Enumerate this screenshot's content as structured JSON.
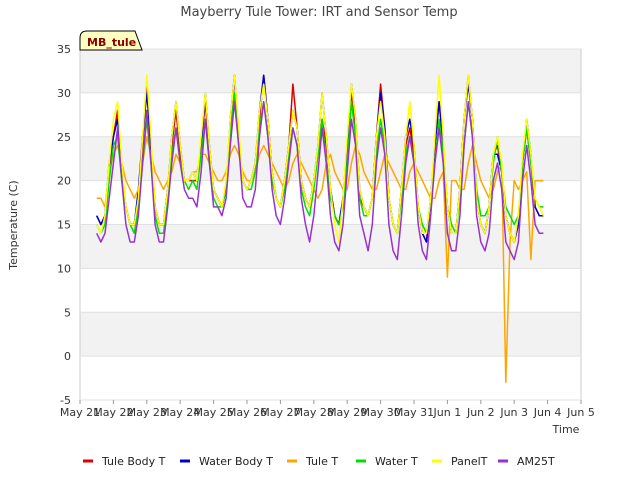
{
  "chart_data": {
    "type": "line",
    "title": "Mayberry Tule Tower: IRT and Sensor Temp",
    "xlabel": "Time",
    "ylabel": "Temperature (C)",
    "badge": "MB_tule",
    "xlim": [
      0,
      15
    ],
    "ylim": [
      -5,
      35
    ],
    "x_ticks": [
      0,
      1,
      2,
      3,
      4,
      5,
      6,
      7,
      8,
      9,
      10,
      11,
      12,
      13,
      14,
      15
    ],
    "x_tick_labels": [
      "May 21",
      "May 22",
      "May 23",
      "May 24",
      "May 25",
      "May 26",
      "May 27",
      "May 28",
      "May 29",
      "May 30",
      "May 31",
      "Jun 1",
      "Jun 2",
      "Jun 3",
      "Jun 4",
      "Jun 5"
    ],
    "y_ticks": [
      -5,
      0,
      5,
      10,
      15,
      20,
      25,
      30,
      35
    ],
    "grid": true,
    "legend_position": "bottom",
    "data_start": 0.5,
    "data_end": 14.3,
    "x_step_days": 0.125,
    "series": [
      {
        "name": "Tule Body T",
        "color": "#dd0000",
        "values": [
          16,
          15,
          16,
          21,
          25,
          28,
          21,
          17,
          15,
          15,
          18,
          24,
          31,
          24,
          17,
          15,
          15,
          19,
          24,
          28,
          23,
          20,
          20,
          20,
          20,
          24,
          29,
          23,
          19,
          18,
          17,
          19,
          26,
          32,
          25,
          20,
          19,
          20,
          22,
          27,
          32,
          27,
          21,
          18,
          17,
          20,
          24,
          31,
          26,
          20,
          18,
          17,
          20,
          23,
          27,
          24,
          19,
          16,
          15,
          18,
          24,
          30,
          26,
          18,
          17,
          16,
          18,
          25,
          31,
          26,
          18,
          15,
          14,
          19,
          24,
          26,
          23,
          17,
          14,
          13,
          18,
          24,
          29,
          24,
          17,
          14,
          14,
          19,
          27,
          32,
          27,
          18,
          15,
          14,
          17,
          23,
          24,
          21,
          16,
          14,
          13,
          15,
          22,
          26,
          22,
          17,
          16,
          16
        ]
      },
      {
        "name": "Water Body T",
        "color": "#0000cc",
        "values": [
          16,
          15,
          16,
          22,
          25,
          27,
          21,
          17,
          15,
          15,
          19,
          25,
          30,
          24,
          17,
          15,
          15,
          19,
          25,
          29,
          24,
          20,
          20,
          21,
          20,
          24,
          30,
          24,
          19,
          18,
          17,
          19,
          27,
          32,
          25,
          20,
          19,
          20,
          22,
          28,
          32,
          27,
          21,
          18,
          17,
          20,
          24,
          28,
          26,
          20,
          18,
          17,
          20,
          24,
          30,
          25,
          19,
          16,
          15,
          18,
          24,
          31,
          27,
          19,
          17,
          16,
          18,
          25,
          30,
          26,
          18,
          15,
          14,
          19,
          25,
          27,
          24,
          17,
          14,
          13,
          18,
          24,
          29,
          24,
          17,
          14,
          14,
          19,
          27,
          31,
          27,
          18,
          15,
          14,
          17,
          23,
          23,
          21,
          16,
          14,
          13,
          15,
          22,
          27,
          23,
          17,
          16,
          16
        ]
      },
      {
        "name": "Tule T",
        "color": "#ffa500",
        "values": [
          18,
          18,
          17,
          21,
          23,
          24,
          22,
          20,
          19,
          18,
          19,
          22,
          25,
          23,
          21,
          20,
          19,
          20,
          21,
          23,
          22,
          20,
          20,
          21,
          21,
          23,
          23,
          22,
          21,
          20,
          20,
          21,
          23,
          24,
          23,
          21,
          20,
          20,
          21,
          23,
          24,
          23,
          22,
          21,
          20,
          19,
          20,
          22,
          23,
          22,
          21,
          20,
          19,
          18,
          19,
          22,
          23,
          21,
          20,
          19,
          19,
          22,
          24,
          23,
          21,
          20,
          19,
          19,
          21,
          23,
          22,
          21,
          20,
          19,
          19,
          21,
          22,
          21,
          20,
          19,
          18,
          18,
          20,
          21,
          9,
          20,
          20,
          19,
          19,
          22,
          24,
          22,
          20,
          19,
          18,
          19,
          21,
          22,
          -3,
          13,
          20,
          19,
          20,
          21,
          11,
          20,
          20,
          20
        ]
      },
      {
        "name": "Water T",
        "color": "#00dd00",
        "values": [
          15,
          14,
          15,
          20,
          24,
          25,
          20,
          17,
          15,
          14,
          17,
          22,
          27,
          22,
          16,
          14,
          14,
          18,
          23,
          26,
          22,
          20,
          19,
          20,
          19,
          23,
          27,
          22,
          18,
          17,
          17,
          19,
          25,
          30,
          24,
          20,
          19,
          19,
          21,
          26,
          29,
          25,
          20,
          18,
          17,
          19,
          23,
          26,
          24,
          19,
          17,
          16,
          19,
          23,
          27,
          22,
          18,
          16,
          15,
          17,
          22,
          29,
          25,
          18,
          16,
          16,
          18,
          23,
          27,
          24,
          18,
          15,
          14,
          18,
          23,
          25,
          22,
          17,
          15,
          14,
          18,
          22,
          27,
          23,
          17,
          15,
          14,
          18,
          24,
          29,
          25,
          19,
          16,
          16,
          17,
          22,
          25,
          21,
          17,
          16,
          15,
          16,
          22,
          26,
          22,
          18,
          17,
          17
        ]
      },
      {
        "name": "PanelT",
        "color": "#ffff00",
        "values": [
          15,
          14,
          16,
          22,
          27,
          29,
          22,
          17,
          15,
          15,
          18,
          25,
          32,
          25,
          17,
          15,
          15,
          19,
          25,
          29,
          24,
          20,
          20,
          21,
          20,
          25,
          30,
          24,
          19,
          18,
          17,
          20,
          27,
          32,
          26,
          20,
          19,
          20,
          22,
          28,
          31,
          27,
          21,
          18,
          17,
          20,
          24,
          28,
          26,
          20,
          18,
          17,
          20,
          24,
          30,
          25,
          19,
          15,
          13,
          18,
          25,
          31,
          27,
          19,
          17,
          16,
          18,
          25,
          29,
          25,
          18,
          15,
          14,
          19,
          25,
          29,
          24,
          17,
          14,
          14,
          18,
          25,
          32,
          25,
          17,
          14,
          14,
          19,
          27,
          32,
          27,
          18,
          15,
          14,
          17,
          23,
          25,
          22,
          16,
          14,
          13,
          16,
          23,
          27,
          23,
          18,
          17,
          16
        ]
      },
      {
        "name": "AM25T",
        "color": "#9932cc",
        "values": [
          14,
          13,
          14,
          18,
          22,
          26,
          20,
          15,
          13,
          13,
          16,
          22,
          28,
          22,
          15,
          13,
          13,
          17,
          22,
          26,
          22,
          19,
          18,
          18,
          17,
          21,
          27,
          22,
          17,
          17,
          16,
          18,
          24,
          29,
          24,
          18,
          17,
          17,
          19,
          25,
          29,
          25,
          19,
          16,
          15,
          18,
          22,
          26,
          24,
          18,
          15,
          13,
          16,
          21,
          26,
          22,
          16,
          13,
          12,
          15,
          21,
          27,
          24,
          16,
          14,
          12,
          15,
          22,
          26,
          23,
          15,
          12,
          11,
          16,
          22,
          25,
          22,
          15,
          12,
          11,
          16,
          22,
          26,
          22,
          14,
          12,
          12,
          16,
          24,
          29,
          25,
          16,
          13,
          12,
          14,
          20,
          22,
          19,
          13,
          12,
          11,
          13,
          20,
          24,
          20,
          15,
          14,
          14
        ]
      }
    ]
  }
}
